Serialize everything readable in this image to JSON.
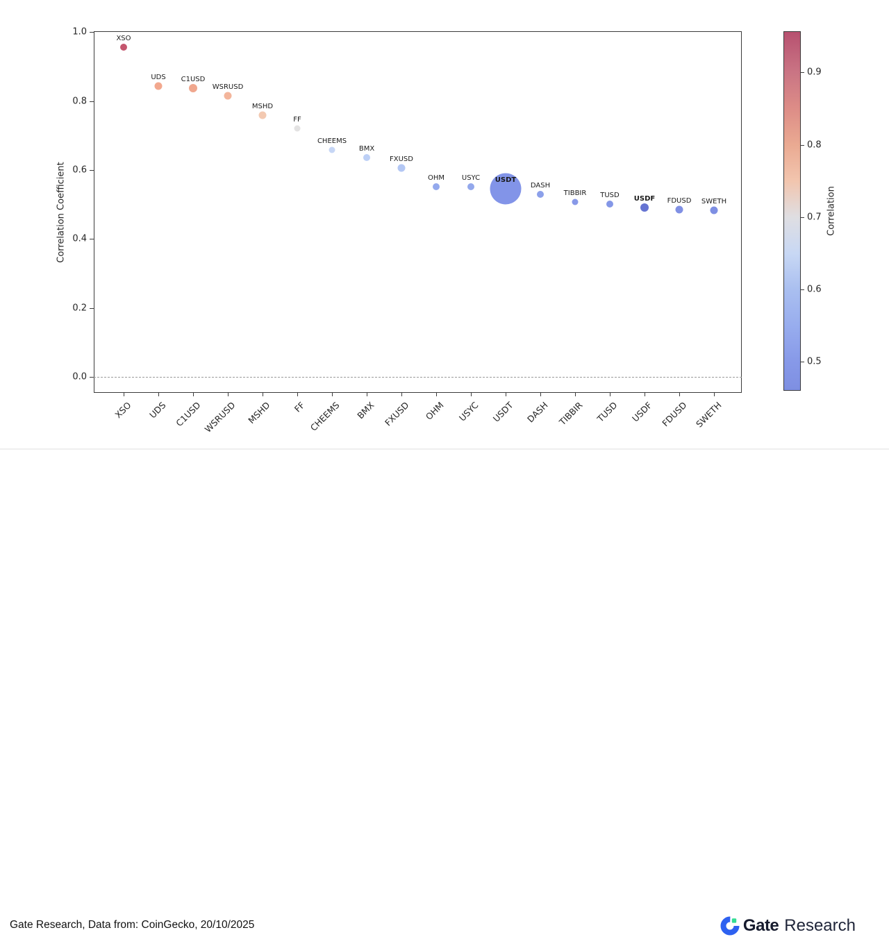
{
  "chart_data": {
    "type": "scatter",
    "title": "",
    "xlabel": "",
    "ylabel": "Correlation Coefficient",
    "ylim": [
      -0.046,
      1.003
    ],
    "yticks": [
      {
        "value": 0.0,
        "label": "0.0"
      },
      {
        "value": 0.2,
        "label": "0.2"
      },
      {
        "value": 0.4,
        "label": "0.4"
      },
      {
        "value": 0.6,
        "label": "0.6"
      },
      {
        "value": 0.8,
        "label": "0.8"
      },
      {
        "value": 1.0,
        "label": "1.0"
      }
    ],
    "zero_line_value": 0.0,
    "grid": false,
    "categories": [
      "XSO",
      "UDS",
      "C1USD",
      "WSRUSD",
      "MSHD",
      "FF",
      "CHEEMS",
      "BMX",
      "FXUSD",
      "OHM",
      "USYC",
      "USDT",
      "DASH",
      "TIBBIR",
      "TUSD",
      "USDF",
      "FDUSD",
      "SWETH"
    ],
    "points": [
      {
        "label": "XSO",
        "value": 0.957,
        "size": 10,
        "color": "#c4566e",
        "bold": false
      },
      {
        "label": "UDS",
        "value": 0.843,
        "size": 11,
        "color": "#f2a88e",
        "bold": false
      },
      {
        "label": "C1USD",
        "value": 0.838,
        "size": 12,
        "color": "#f0a78e",
        "bold": false
      },
      {
        "label": "WSRUSD",
        "value": 0.815,
        "size": 11,
        "color": "#f3b59b",
        "bold": false
      },
      {
        "label": "MSHD",
        "value": 0.76,
        "size": 11,
        "color": "#f3c9b1",
        "bold": false
      },
      {
        "label": "FF",
        "value": 0.722,
        "size": 9,
        "color": "#e3e2e2",
        "bold": false
      },
      {
        "label": "CHEEMS",
        "value": 0.659,
        "size": 9,
        "color": "#c6d6f5",
        "bold": false
      },
      {
        "label": "BMX",
        "value": 0.637,
        "size": 10,
        "color": "#bdd0f6",
        "bold": false
      },
      {
        "label": "FXUSD",
        "value": 0.607,
        "size": 11,
        "color": "#b3c7f4",
        "bold": false
      },
      {
        "label": "OHM",
        "value": 0.552,
        "size": 10,
        "color": "#94a9ed",
        "bold": false
      },
      {
        "label": "USYC",
        "value": 0.551,
        "size": 10,
        "color": "#93a8ec",
        "bold": false
      },
      {
        "label": "USDT",
        "value": 0.545,
        "size": 45,
        "color": "#8294e8",
        "bold": true
      },
      {
        "label": "DASH",
        "value": 0.53,
        "size": 10,
        "color": "#8ca0ea",
        "bold": false
      },
      {
        "label": "TIBBIR",
        "value": 0.508,
        "size": 9,
        "color": "#8899e8",
        "bold": false
      },
      {
        "label": "TUSD",
        "value": 0.502,
        "size": 10,
        "color": "#8497e7",
        "bold": false
      },
      {
        "label": "USDF",
        "value": 0.491,
        "size": 12,
        "color": "#6674d2",
        "bold": true
      },
      {
        "label": "FDUSD",
        "value": 0.486,
        "size": 11,
        "color": "#8090e4",
        "bold": false
      },
      {
        "label": "SWETH",
        "value": 0.484,
        "size": 11,
        "color": "#7e8fe3",
        "bold": false
      }
    ],
    "colorbar": {
      "label": "Correlation",
      "vmin": 0.46,
      "vmax": 0.957,
      "ticks": [
        {
          "value": 0.9,
          "label": "0.9"
        },
        {
          "value": 0.8,
          "label": "0.8"
        },
        {
          "value": 0.7,
          "label": "0.7"
        },
        {
          "value": 0.6,
          "label": "0.6"
        },
        {
          "value": 0.5,
          "label": "0.5"
        }
      ],
      "gradient": [
        {
          "value": 0.957,
          "color": "#b75170"
        },
        {
          "value": 0.9,
          "color": "#ca7584"
        },
        {
          "value": 0.85,
          "color": "#dd8d87"
        },
        {
          "value": 0.8,
          "color": "#eaaa92"
        },
        {
          "value": 0.75,
          "color": "#f2c5ae"
        },
        {
          "value": 0.7,
          "color": "#dfdee2"
        },
        {
          "value": 0.65,
          "color": "#c8d8f4"
        },
        {
          "value": 0.6,
          "color": "#aabff0"
        },
        {
          "value": 0.55,
          "color": "#98adee"
        },
        {
          "value": 0.5,
          "color": "#8799e8"
        },
        {
          "value": 0.46,
          "color": "#7e8fe2"
        }
      ]
    }
  },
  "footer": {
    "source_text": "Gate Research, Data from: CoinGecko, 20/10/2025",
    "logo": {
      "brand_bold": "Gate",
      "brand_regular": "Research",
      "icon_blue": "#2e61f0",
      "icon_green": "#34dd94"
    }
  }
}
